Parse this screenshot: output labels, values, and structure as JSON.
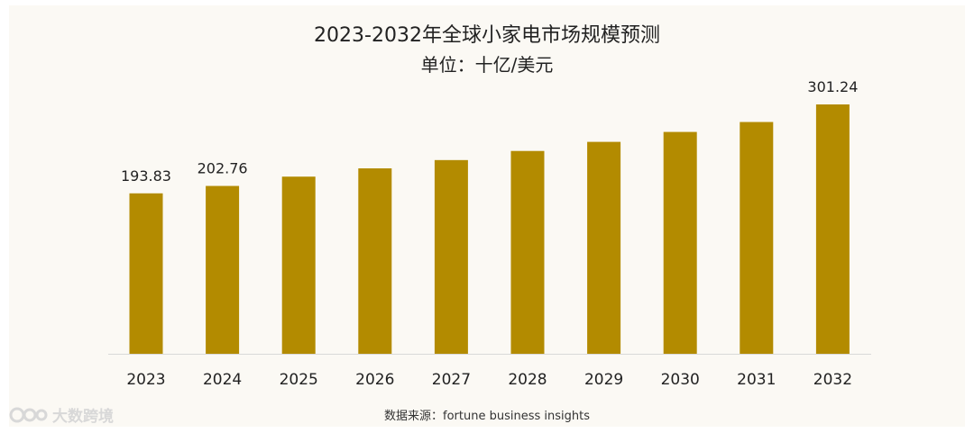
{
  "chart_data": {
    "type": "bar",
    "title": "2023-2032年全球小家电市场规模预测",
    "subtitle": "单位：十亿/美元",
    "categories": [
      "2023",
      "2024",
      "2025",
      "2026",
      "2027",
      "2028",
      "2029",
      "2030",
      "2031",
      "2032"
    ],
    "values": [
      193.83,
      202.76,
      214,
      224,
      234,
      245,
      256,
      268,
      280,
      301.24
    ],
    "data_labels": [
      "193.83",
      "202.76",
      "",
      "",
      "",
      "",
      "",
      "",
      "",
      "301.24"
    ],
    "ylim": [
      0,
      310
    ],
    "bar_color": "#b38b00",
    "grid": false
  },
  "source": "数据来源：fortune business insights",
  "watermark": {
    "text": "大数跨境",
    "icon": "brand-logo-icon"
  }
}
